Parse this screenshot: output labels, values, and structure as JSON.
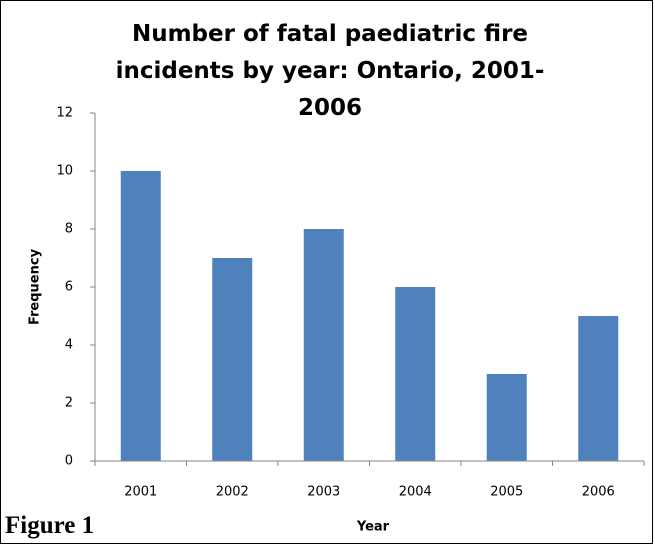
{
  "chart_data": {
    "type": "bar",
    "title": "Number of fatal paediatric fire incidents by year: Ontario, 2001-2006",
    "categories": [
      "2001",
      "2002",
      "2003",
      "2004",
      "2005",
      "2006"
    ],
    "values": [
      10,
      7,
      8,
      6,
      3,
      5
    ],
    "color": "#4f81bd",
    "ylim": [
      0,
      12
    ],
    "yticks": [
      0,
      2,
      4,
      6,
      8,
      10,
      12
    ],
    "grid": false,
    "x_label": "Year",
    "y_label": "Frequency"
  },
  "caption": "Figure 1"
}
